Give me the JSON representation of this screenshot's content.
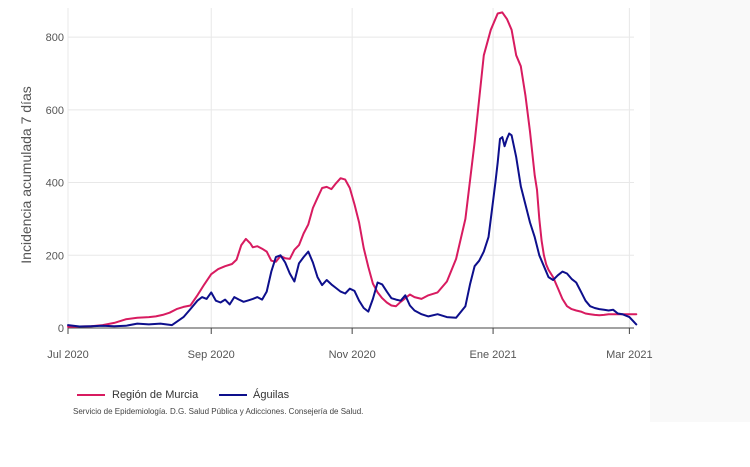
{
  "chart_data": {
    "type": "line",
    "title": "",
    "xlabel": "",
    "ylabel": "Incidencia acumulada 7 días",
    "ylim": [
      0,
      880
    ],
    "yticks": [
      0,
      200,
      400,
      600,
      800
    ],
    "xlim": [
      0,
      245
    ],
    "xticks": [
      {
        "day": 0,
        "label": "Jul 2020"
      },
      {
        "day": 62,
        "label": "Sep 2020"
      },
      {
        "day": 123,
        "label": "Nov 2020"
      },
      {
        "day": 184,
        "label": "Ene 2021"
      },
      {
        "day": 243,
        "label": "Mar 2021"
      }
    ],
    "grid": true,
    "legend_position": "bottom-left",
    "series": [
      {
        "name": "Región de Murcia",
        "color": "#d81b60",
        "x": [
          0,
          5,
          10,
          15,
          20,
          25,
          30,
          35,
          38,
          41,
          44,
          47,
          50,
          53,
          56,
          59,
          62,
          65,
          68,
          71,
          73,
          75,
          77,
          79,
          80,
          82,
          84,
          86,
          88,
          90,
          92,
          94,
          96,
          98,
          100,
          102,
          104,
          106,
          108,
          110,
          112,
          114,
          116,
          118,
          120,
          122,
          124,
          126,
          128,
          130,
          132,
          134,
          136,
          138,
          140,
          142,
          144,
          146,
          148,
          150,
          153,
          156,
          160,
          164,
          168,
          172,
          176,
          180,
          183,
          186,
          188,
          190,
          192,
          194,
          196,
          198,
          200,
          202,
          203,
          204,
          205,
          206,
          207,
          208,
          210,
          212,
          214,
          216,
          218,
          220,
          222,
          224,
          226,
          228,
          230,
          232,
          234,
          236,
          238,
          240,
          243,
          246
        ],
        "y": [
          3,
          4,
          5,
          8,
          14,
          24,
          28,
          30,
          32,
          36,
          42,
          52,
          58,
          62,
          90,
          120,
          148,
          162,
          170,
          176,
          188,
          228,
          245,
          232,
          222,
          225,
          218,
          210,
          185,
          182,
          198,
          192,
          190,
          215,
          228,
          260,
          285,
          330,
          358,
          385,
          388,
          382,
          398,
          412,
          408,
          385,
          340,
          290,
          220,
          168,
          122,
          98,
          82,
          70,
          62,
          60,
          72,
          82,
          92,
          85,
          80,
          90,
          98,
          128,
          190,
          300,
          510,
          750,
          820,
          865,
          868,
          850,
          820,
          750,
          720,
          640,
          540,
          420,
          380,
          300,
          240,
          200,
          175,
          160,
          140,
          110,
          80,
          60,
          52,
          48,
          45,
          40,
          38,
          36,
          35,
          36,
          38,
          38,
          38,
          38,
          38,
          38
        ]
      },
      {
        "name": "Águilas",
        "color": "#0d0f8c",
        "x": [
          0,
          5,
          10,
          15,
          20,
          25,
          30,
          35,
          40,
          45,
          50,
          53,
          56,
          58,
          60,
          62,
          64,
          66,
          68,
          70,
          72,
          74,
          76,
          78,
          80,
          82,
          84,
          86,
          88,
          90,
          92,
          94,
          96,
          98,
          100,
          102,
          104,
          106,
          108,
          110,
          112,
          114,
          116,
          118,
          120,
          122,
          124,
          126,
          128,
          130,
          132,
          134,
          136,
          138,
          140,
          142,
          144,
          146,
          148,
          150,
          153,
          156,
          160,
          164,
          168,
          172,
          174,
          176,
          178,
          180,
          182,
          184,
          185,
          186,
          187,
          188,
          189,
          190,
          191,
          192,
          193,
          194,
          196,
          198,
          200,
          202,
          204,
          206,
          208,
          210,
          212,
          214,
          216,
          218,
          220,
          222,
          224,
          226,
          228,
          230,
          232,
          234,
          236,
          238,
          240,
          243,
          246
        ],
        "y": [
          8,
          4,
          5,
          6,
          5,
          6,
          12,
          10,
          12,
          8,
          30,
          52,
          75,
          85,
          80,
          98,
          75,
          70,
          78,
          65,
          85,
          78,
          72,
          76,
          80,
          85,
          78,
          100,
          155,
          195,
          200,
          180,
          150,
          128,
          178,
          195,
          210,
          180,
          140,
          118,
          132,
          120,
          110,
          100,
          95,
          108,
          102,
          75,
          55,
          45,
          80,
          125,
          120,
          100,
          82,
          78,
          75,
          90,
          62,
          48,
          38,
          32,
          38,
          30,
          28,
          60,
          120,
          170,
          185,
          210,
          250,
          350,
          400,
          455,
          520,
          525,
          500,
          520,
          535,
          530,
          500,
          470,
          390,
          340,
          290,
          250,
          200,
          170,
          140,
          132,
          145,
          155,
          150,
          135,
          125,
          100,
          75,
          60,
          55,
          52,
          50,
          48,
          50,
          40,
          38,
          30,
          10
        ]
      }
    ],
    "legend": [
      {
        "label": "Región de Murcia",
        "color": "#d81b60"
      },
      {
        "label": "Águilas",
        "color": "#0d0f8c"
      }
    ],
    "source": "Servicio de Epidemiología. D.G. Salud Pública y Adicciones. Consejería de Salud."
  }
}
